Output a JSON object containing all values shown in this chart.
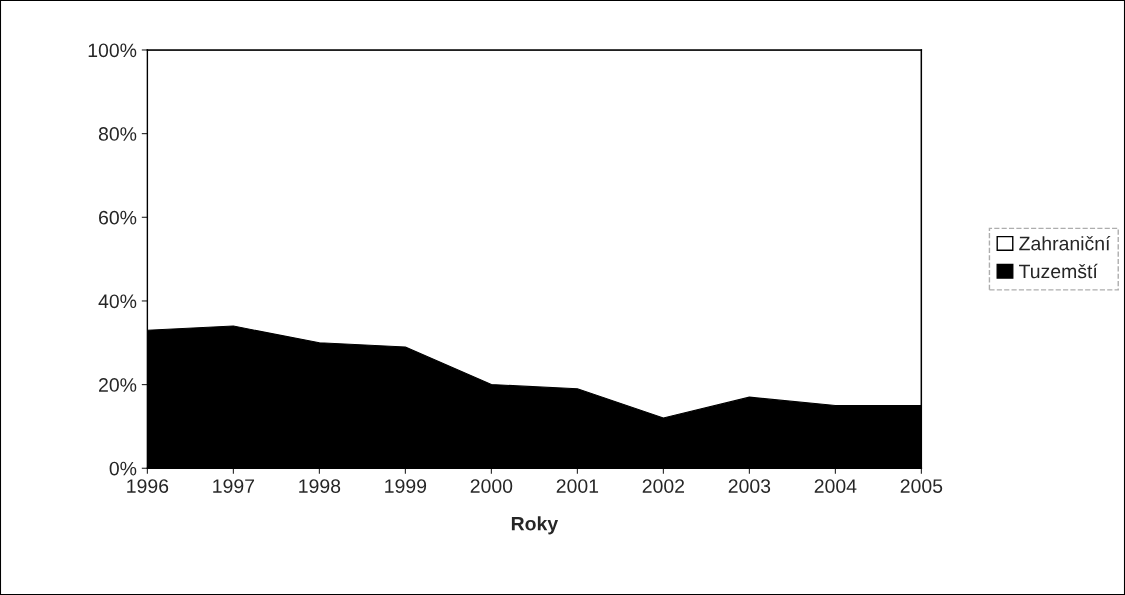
{
  "chart_data": {
    "type": "area",
    "stacked": true,
    "xlabel": "Roky",
    "categories": [
      "1996",
      "1997",
      "1998",
      "1999",
      "2000",
      "2001",
      "2002",
      "2003",
      "2004",
      "2005"
    ],
    "series": [
      {
        "name": "Tuzemští",
        "color": "#000000",
        "values": [
          33,
          34,
          30,
          29,
          20,
          19,
          12,
          17,
          15,
          15
        ]
      },
      {
        "name": "Zahraniční",
        "color": "#ffffff",
        "values": [
          67,
          66,
          70,
          71,
          80,
          81,
          88,
          83,
          85,
          85
        ]
      }
    ],
    "ylim": [
      0,
      100
    ],
    "yticks": [
      {
        "value": 0,
        "label": "0%"
      },
      {
        "value": 20,
        "label": "20%"
      },
      {
        "value": 40,
        "label": "40%"
      },
      {
        "value": 60,
        "label": "60%"
      },
      {
        "value": 80,
        "label": "80%"
      },
      {
        "value": 100,
        "label": "100%"
      }
    ],
    "legend": "right"
  }
}
